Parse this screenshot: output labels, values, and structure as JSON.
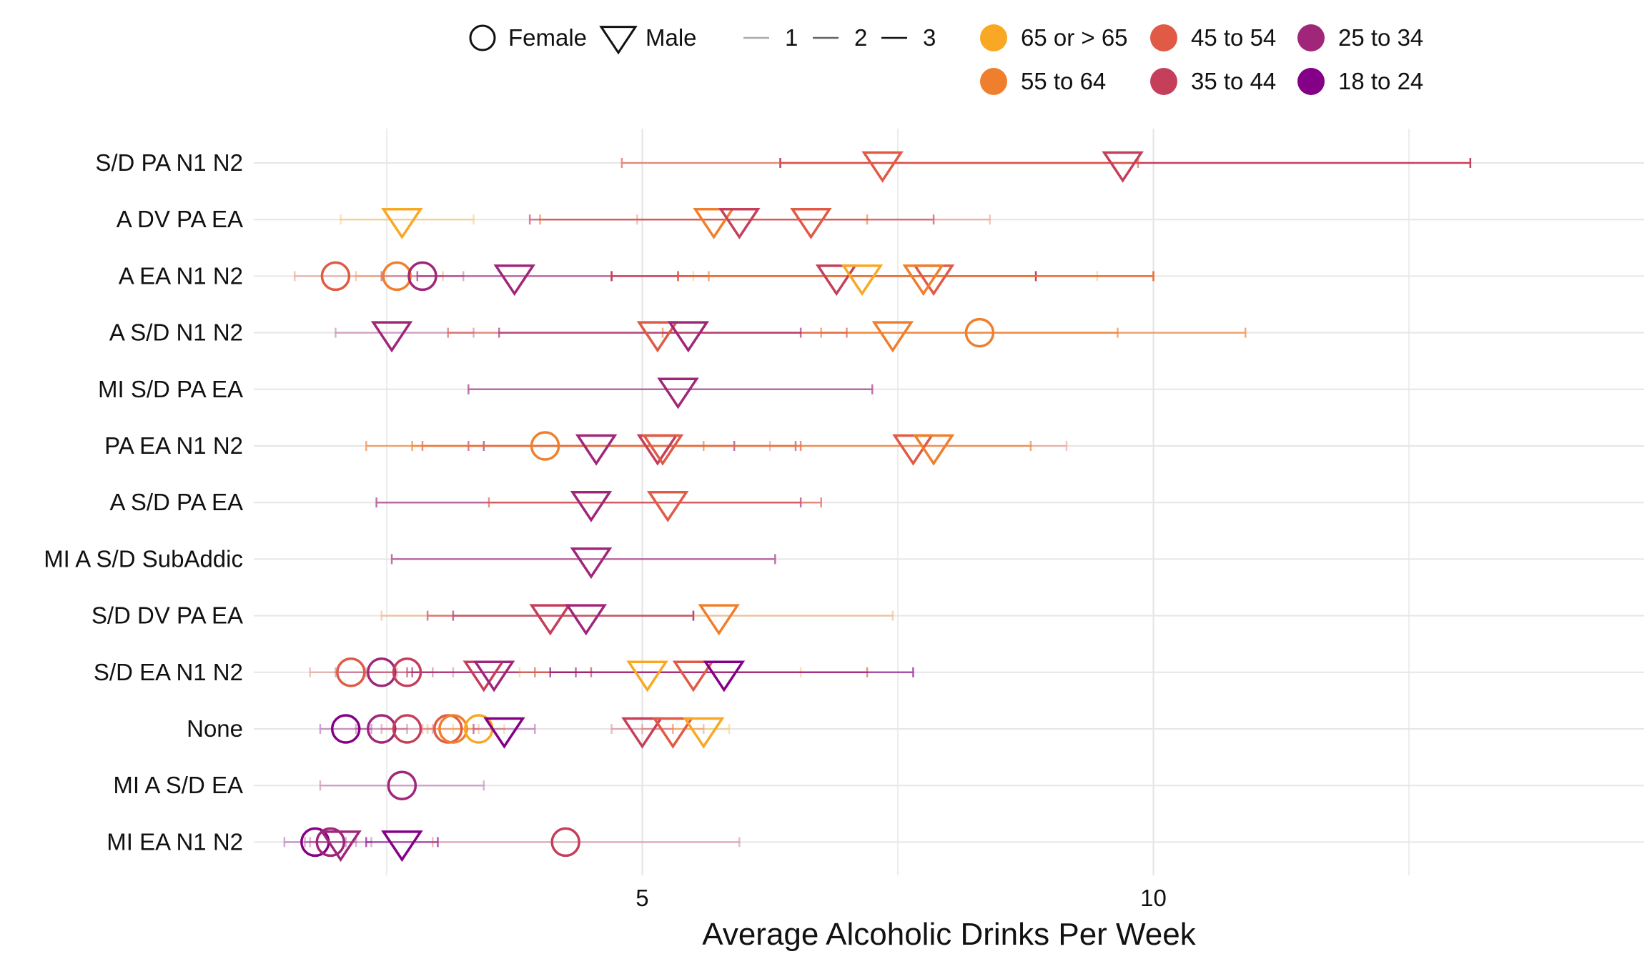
{
  "chart_data": {
    "type": "scatter",
    "xlabel": "Average Alcoholic Drinks Per Week",
    "ylabel": "",
    "xlim": [
      1.2,
      14.8
    ],
    "x_ticks": [
      5,
      10
    ],
    "x_gridlines": [
      2.5,
      5,
      7.5,
      10,
      12.5
    ],
    "grid": true,
    "categories": [
      "S/D PA N1 N2",
      "A DV PA EA",
      "A EA N1 N2",
      "A S/D N1 N2",
      "MI S/D PA EA",
      "PA EA N1 N2",
      "A S/D PA EA",
      "MI A S/D SubAddic",
      "S/D DV PA EA",
      "S/D EA N1 N2",
      "None",
      "MI A S/D EA",
      "MI EA N1 N2"
    ],
    "legend": {
      "position": "top",
      "shape_title_entries": [
        {
          "label": "Female",
          "shape": "circle"
        },
        {
          "label": "Male",
          "shape": "triangle-down"
        }
      ],
      "line_entries": [
        {
          "label": "1",
          "opacity": 0.35
        },
        {
          "label": "2",
          "opacity": 0.65
        },
        {
          "label": "3",
          "opacity": 1.0
        }
      ],
      "age_groups": [
        {
          "label": "65 or > 65",
          "color": "#F9A823"
        },
        {
          "label": "55 to 64",
          "color": "#F07F2D"
        },
        {
          "label": "45 to 54",
          "color": "#E05A45"
        },
        {
          "label": "35 to 44",
          "color": "#C53F5B"
        },
        {
          "label": "25 to 34",
          "color": "#A0267A"
        },
        {
          "label": "18 to 24",
          "color": "#840087"
        }
      ]
    },
    "points": [
      {
        "category": "S/D PA N1 N2",
        "sex": "Male",
        "age": "35 to 44",
        "x": 9.7,
        "lo": 6.35,
        "hi": 13.1,
        "weight": 3
      },
      {
        "category": "S/D PA N1 N2",
        "sex": "Male",
        "age": "45 to 54",
        "x": 7.35,
        "lo": 4.8,
        "hi": 9.85,
        "weight": 2
      },
      {
        "category": "A DV PA EA",
        "sex": "Male",
        "age": "65 or > 65",
        "x": 2.65,
        "lo": 2.05,
        "hi": 3.35,
        "weight": 1
      },
      {
        "category": "A DV PA EA",
        "sex": "Male",
        "age": "55 to 64",
        "x": 5.7,
        "lo": 4.0,
        "hi": 7.2,
        "weight": 2
      },
      {
        "category": "A DV PA EA",
        "sex": "Male",
        "age": "35 to 44",
        "x": 5.95,
        "lo": 3.9,
        "hi": 7.85,
        "weight": 2
      },
      {
        "category": "A DV PA EA",
        "sex": "Male",
        "age": "45 to 54",
        "x": 6.65,
        "lo": 4.95,
        "hi": 8.4,
        "weight": 1
      },
      {
        "category": "A EA N1 N2",
        "sex": "Female",
        "age": "45 to 54",
        "x": 2.0,
        "lo": 1.6,
        "hi": 2.45,
        "weight": 1
      },
      {
        "category": "A EA N1 N2",
        "sex": "Female",
        "age": "55 to 64",
        "x": 2.6,
        "lo": 2.2,
        "hi": 3.05,
        "weight": 1
      },
      {
        "category": "A EA N1 N2",
        "sex": "Female",
        "age": "25 to 34",
        "x": 2.85,
        "lo": 2.45,
        "hi": 3.25,
        "weight": 1
      },
      {
        "category": "A EA N1 N2",
        "sex": "Male",
        "age": "25 to 34",
        "x": 3.75,
        "lo": 2.8,
        "hi": 4.7,
        "weight": 2
      },
      {
        "category": "A EA N1 N2",
        "sex": "Male",
        "age": "35 to 44",
        "x": 6.9,
        "lo": 4.7,
        "hi": 8.85,
        "weight": 3
      },
      {
        "category": "A EA N1 N2",
        "sex": "Male",
        "age": "65 or > 65",
        "x": 7.15,
        "lo": 5.5,
        "hi": 9.45,
        "weight": 1
      },
      {
        "category": "A EA N1 N2",
        "sex": "Male",
        "age": "45 to 54",
        "x": 7.85,
        "lo": 5.35,
        "hi": 10.0,
        "weight": 3
      },
      {
        "category": "A EA N1 N2",
        "sex": "Male",
        "age": "55 to 64",
        "x": 7.75,
        "lo": 5.65,
        "hi": 10.0,
        "weight": 2
      },
      {
        "category": "A S/D N1 N2",
        "sex": "Male",
        "age": "25 to 34",
        "x": 2.55,
        "lo": 2.0,
        "hi": 3.35,
        "weight": 1
      },
      {
        "category": "A S/D N1 N2",
        "sex": "Female",
        "age": "55 to 64",
        "x": 8.3,
        "lo": 6.75,
        "hi": 10.9,
        "weight": 2
      },
      {
        "category": "A S/D N1 N2",
        "sex": "Male",
        "age": "55 to 64",
        "x": 7.45,
        "lo": 5.2,
        "hi": 9.65,
        "weight": 2
      },
      {
        "category": "A S/D N1 N2",
        "sex": "Male",
        "age": "45 to 54",
        "x": 5.15,
        "lo": 3.1,
        "hi": 7.0,
        "weight": 2
      },
      {
        "category": "A S/D N1 N2",
        "sex": "Male",
        "age": "25 to 34",
        "x": 5.45,
        "lo": 3.6,
        "hi": 6.55,
        "weight": 2
      },
      {
        "category": "MI S/D PA EA",
        "sex": "Male",
        "age": "25 to 34",
        "x": 5.35,
        "lo": 3.3,
        "hi": 7.25,
        "weight": 2
      },
      {
        "category": "PA EA N1 N2",
        "sex": "Female",
        "age": "55 to 64",
        "x": 4.05,
        "lo": 2.75,
        "hi": 5.6,
        "weight": 2
      },
      {
        "category": "PA EA N1 N2",
        "sex": "Male",
        "age": "25 to 34",
        "x": 4.55,
        "lo": 3.45,
        "hi": 5.9,
        "weight": 2
      },
      {
        "category": "PA EA N1 N2",
        "sex": "Male",
        "age": "35 to 44",
        "x": 5.15,
        "lo": 3.3,
        "hi": 6.5,
        "weight": 2
      },
      {
        "category": "PA EA N1 N2",
        "sex": "Male",
        "age": "45 to 54",
        "x": 5.2,
        "lo": 2.85,
        "hi": 6.55,
        "weight": 2
      },
      {
        "category": "PA EA N1 N2",
        "sex": "Male",
        "age": "45 to 54",
        "x": 7.65,
        "lo": 6.25,
        "hi": 9.15,
        "weight": 1
      },
      {
        "category": "PA EA N1 N2",
        "sex": "Male",
        "age": "55 to 64",
        "x": 7.85,
        "lo": 2.3,
        "hi": 8.8,
        "weight": 2
      },
      {
        "category": "A S/D PA EA",
        "sex": "Male",
        "age": "25 to 34",
        "x": 4.5,
        "lo": 2.4,
        "hi": 6.55,
        "weight": 2
      },
      {
        "category": "A S/D PA EA",
        "sex": "Male",
        "age": "45 to 54",
        "x": 5.25,
        "lo": 3.5,
        "hi": 6.75,
        "weight": 2
      },
      {
        "category": "MI A S/D SubAddic",
        "sex": "Male",
        "age": "25 to 34",
        "x": 4.5,
        "lo": 2.55,
        "hi": 6.3,
        "weight": 2
      },
      {
        "category": "S/D DV PA EA",
        "sex": "Male",
        "age": "35 to 44",
        "x": 4.1,
        "lo": 2.9,
        "hi": 5.5,
        "weight": 2
      },
      {
        "category": "S/D DV PA EA",
        "sex": "Male",
        "age": "25 to 34",
        "x": 4.45,
        "lo": 3.15,
        "hi": 5.5,
        "weight": 2
      },
      {
        "category": "S/D DV PA EA",
        "sex": "Male",
        "age": "55 to 64",
        "x": 5.75,
        "lo": 2.45,
        "hi": 7.45,
        "weight": 1
      },
      {
        "category": "S/D EA N1 N2",
        "sex": "Female",
        "age": "45 to 54",
        "x": 2.15,
        "lo": 1.75,
        "hi": 2.6,
        "weight": 1
      },
      {
        "category": "S/D EA N1 N2",
        "sex": "Female",
        "age": "25 to 34",
        "x": 2.45,
        "lo": 2.0,
        "hi": 2.95,
        "weight": 1
      },
      {
        "category": "S/D EA N1 N2",
        "sex": "Female",
        "age": "35 to 44",
        "x": 2.7,
        "lo": 2.3,
        "hi": 3.15,
        "weight": 1
      },
      {
        "category": "S/D EA N1 N2",
        "sex": "Male",
        "age": "35 to 44",
        "x": 3.45,
        "lo": 2.7,
        "hi": 4.5,
        "weight": 2
      },
      {
        "category": "S/D EA N1 N2",
        "sex": "Male",
        "age": "25 to 34",
        "x": 3.55,
        "lo": 2.75,
        "hi": 4.35,
        "weight": 2
      },
      {
        "category": "S/D EA N1 N2",
        "sex": "Male",
        "age": "65 or > 65",
        "x": 5.05,
        "lo": 3.8,
        "hi": 6.55,
        "weight": 1
      },
      {
        "category": "S/D EA N1 N2",
        "sex": "Male",
        "age": "45 to 54",
        "x": 5.5,
        "lo": 3.95,
        "hi": 7.2,
        "weight": 2
      },
      {
        "category": "S/D EA N1 N2",
        "sex": "Male",
        "age": "18 to 24",
        "x": 5.8,
        "lo": 4.1,
        "hi": 7.65,
        "weight": 2
      },
      {
        "category": "None",
        "sex": "Female",
        "age": "18 to 24",
        "x": 2.1,
        "lo": 1.85,
        "hi": 2.35,
        "weight": 1
      },
      {
        "category": "None",
        "sex": "Female",
        "age": "25 to 34",
        "x": 2.45,
        "lo": 2.2,
        "hi": 2.7,
        "weight": 1
      },
      {
        "category": "None",
        "sex": "Female",
        "age": "35 to 44",
        "x": 2.7,
        "lo": 2.45,
        "hi": 2.95,
        "weight": 1
      },
      {
        "category": "None",
        "sex": "Female",
        "age": "45 to 54",
        "x": 3.1,
        "lo": 2.85,
        "hi": 3.35,
        "weight": 1
      },
      {
        "category": "None",
        "sex": "Female",
        "age": "55 to 64",
        "x": 3.15,
        "lo": 2.9,
        "hi": 3.4,
        "weight": 1
      },
      {
        "category": "None",
        "sex": "Female",
        "age": "65 or > 65",
        "x": 3.4,
        "lo": 3.15,
        "hi": 3.65,
        "weight": 1
      },
      {
        "category": "None",
        "sex": "Male",
        "age": "18 to 24",
        "x": 3.65,
        "lo": 3.35,
        "hi": 3.95,
        "weight": 1
      },
      {
        "category": "None",
        "sex": "Male",
        "age": "35 to 44",
        "x": 5.0,
        "lo": 4.7,
        "hi": 5.3,
        "weight": 1
      },
      {
        "category": "None",
        "sex": "Male",
        "age": "45 to 54",
        "x": 5.3,
        "lo": 5.0,
        "hi": 5.6,
        "weight": 1
      },
      {
        "category": "None",
        "sex": "Male",
        "age": "65 or > 65",
        "x": 5.6,
        "lo": 5.3,
        "hi": 5.85,
        "weight": 1
      },
      {
        "category": "MI A S/D EA",
        "sex": "Female",
        "age": "25 to 34",
        "x": 2.65,
        "lo": 1.85,
        "hi": 3.45,
        "weight": 1
      },
      {
        "category": "MI EA N1 N2",
        "sex": "Female",
        "age": "18 to 24",
        "x": 1.8,
        "lo": 1.5,
        "hi": 2.1,
        "weight": 1
      },
      {
        "category": "MI EA N1 N2",
        "sex": "Female",
        "age": "25 to 34",
        "x": 1.95,
        "lo": 1.7,
        "hi": 2.2,
        "weight": 1
      },
      {
        "category": "MI EA N1 N2",
        "sex": "Male",
        "age": "25 to 34",
        "x": 2.05,
        "lo": 1.75,
        "hi": 2.35,
        "weight": 1
      },
      {
        "category": "MI EA N1 N2",
        "sex": "Male",
        "age": "18 to 24",
        "x": 2.65,
        "lo": 2.3,
        "hi": 3.0,
        "weight": 2
      },
      {
        "category": "MI EA N1 N2",
        "sex": "Female",
        "age": "35 to 44",
        "x": 4.25,
        "lo": 2.95,
        "hi": 5.95,
        "weight": 1
      }
    ]
  }
}
